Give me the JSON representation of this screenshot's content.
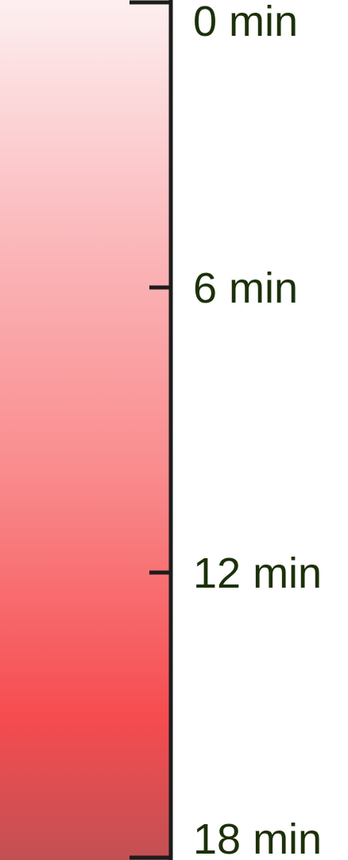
{
  "chart_data": {
    "type": "heatmap",
    "title": "",
    "xlabel": "",
    "ylabel": "",
    "unit": "min",
    "range": [
      0,
      18
    ],
    "ticks": [
      {
        "value": 0,
        "label": "0 min"
      },
      {
        "value": 6,
        "label": "6 min"
      },
      {
        "value": 12,
        "label": "12 min"
      },
      {
        "value": 18,
        "label": "18 min"
      }
    ],
    "color_stops": [
      {
        "value": 0,
        "color": "#fdeff0"
      },
      {
        "value": 5,
        "color": "#fbb8bb"
      },
      {
        "value": 10,
        "color": "#f98a8c"
      },
      {
        "value": 15,
        "color": "#f64c50"
      },
      {
        "value": 18,
        "color": "#c25053"
      }
    ],
    "axis_color": "#1c1c1c",
    "label_color": "#1c3009"
  }
}
